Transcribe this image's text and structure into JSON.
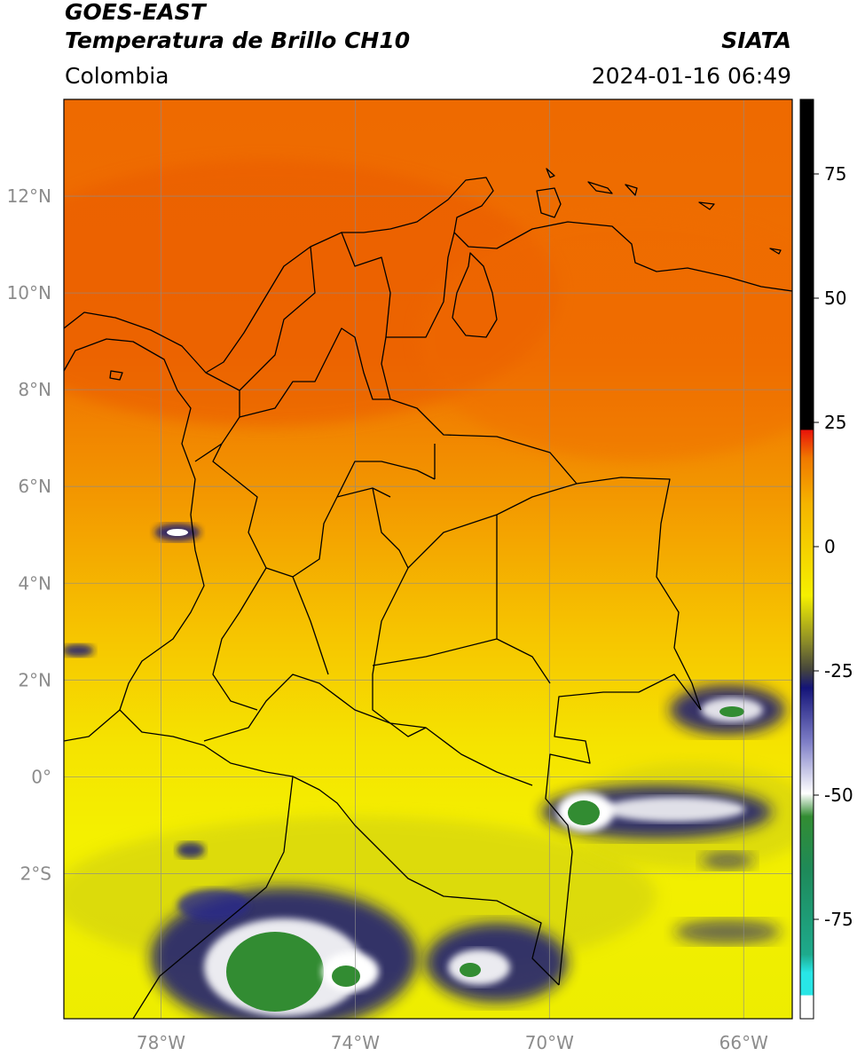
{
  "header": {
    "satellite": "GOES-EAST",
    "product": "Temperatura de Brillo CH10",
    "region": "Colombia",
    "organization": "SIATA",
    "datetime": "2024-01-16 06:49"
  },
  "map": {
    "lon_range": [
      -80,
      -65
    ],
    "lat_range": [
      -5,
      14
    ],
    "grid": true,
    "lat_ticks": [
      {
        "value": 12,
        "label": "12°N"
      },
      {
        "value": 10,
        "label": "10°N"
      },
      {
        "value": 8,
        "label": "8°N"
      },
      {
        "value": 6,
        "label": "6°N"
      },
      {
        "value": 4,
        "label": "4°N"
      },
      {
        "value": 2,
        "label": "2°N"
      },
      {
        "value": 0,
        "label": "0°"
      },
      {
        "value": -2,
        "label": "2°S"
      }
    ],
    "lon_ticks": [
      {
        "value": -78,
        "label": "78°W"
      },
      {
        "value": -74,
        "label": "74°W"
      },
      {
        "value": -70,
        "label": "70°W"
      },
      {
        "value": -66,
        "label": "66°W"
      }
    ]
  },
  "colorbar": {
    "range": [
      -95,
      90
    ],
    "ticks": [
      {
        "value": 75,
        "label": "75"
      },
      {
        "value": 50,
        "label": "50"
      },
      {
        "value": 25,
        "label": "25"
      },
      {
        "value": 0,
        "label": "0"
      },
      {
        "value": -25,
        "label": "-25"
      },
      {
        "value": -50,
        "label": "-50"
      },
      {
        "value": -75,
        "label": "-75"
      }
    ],
    "colors": {
      "warm_top": "#000000",
      "red": "#e8140a",
      "orange": "#f07800",
      "yellow": "#f5f000",
      "olive": "#8c8c28",
      "navy": "#141478",
      "white": "#ffffff",
      "green": "#328c32",
      "teal": "#1eaa8c",
      "cyan": "#28e6e6"
    }
  }
}
